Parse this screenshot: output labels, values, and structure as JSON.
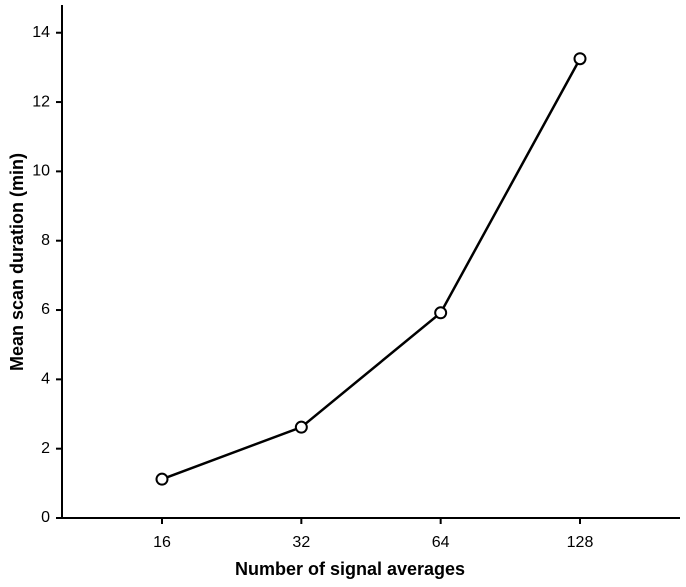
{
  "chart_data": {
    "type": "line",
    "x_label": "Number of signal averages",
    "y_label": "Mean scan duration (min)",
    "categories": [
      "16",
      "32",
      "64",
      "128"
    ],
    "values": [
      1.12,
      2.62,
      5.92,
      13.25
    ],
    "color": "#000000",
    "ylim": [
      0,
      14.8
    ],
    "yticks": [
      0,
      2,
      4,
      6,
      8,
      10,
      12,
      14
    ],
    "grid": false
  }
}
